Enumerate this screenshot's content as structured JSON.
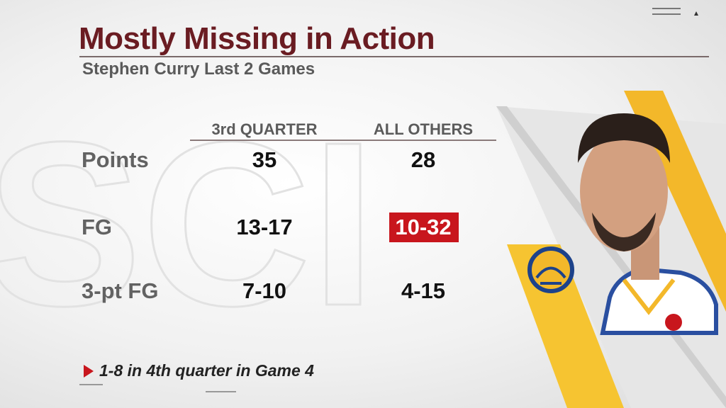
{
  "header": {
    "title": "Mostly Missing in Action",
    "subtitle": "Stephen Curry Last 2 Games"
  },
  "table": {
    "columns": [
      "3rd QUARTER",
      "ALL OTHERS"
    ],
    "rows": [
      [
        "Points",
        "35",
        "28"
      ],
      [
        "FG",
        "13-17",
        "10-32"
      ],
      [
        "3-pt FG",
        "7-10",
        "4-15"
      ]
    ]
  },
  "note": "1-8 in 4th quarter in Game 4"
}
